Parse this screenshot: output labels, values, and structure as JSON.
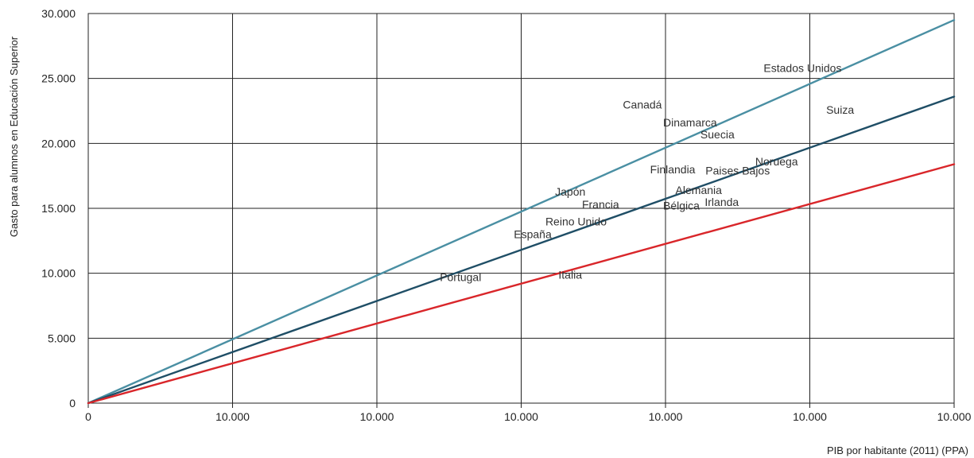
{
  "chart_data": {
    "type": "line",
    "title": "",
    "xlabel": "PIB por habitante (2011) (PPA)",
    "ylabel": "Gasto para alumnos en Educación Superior",
    "x_tick_labels": [
      "0",
      "10.000",
      "10.000",
      "10.000",
      "10.000",
      "10.000",
      "10.000"
    ],
    "xlim": [
      0,
      60000
    ],
    "ylim": [
      0,
      30000
    ],
    "y_ticks": [
      0,
      5000,
      10000,
      15000,
      20000,
      25000,
      30000
    ],
    "y_tick_labels": [
      "0",
      "5.000",
      "10.000",
      "15.000",
      "20.000",
      "25.000",
      "30.000"
    ],
    "grid": true,
    "series": [
      {
        "color": "#4a8fa3",
        "x": [
          0,
          60000
        ],
        "values": [
          0,
          29500
        ]
      },
      {
        "color": "#1f4e66",
        "x": [
          0,
          60000
        ],
        "values": [
          0,
          23600
        ]
      },
      {
        "color": "#d9262a",
        "x": [
          0,
          60000
        ],
        "values": [
          0,
          18400
        ]
      }
    ],
    "annotations": [
      {
        "text": "Estados Unidos",
        "x": 49500,
        "y": 25800
      },
      {
        "text": "Suiza",
        "x": 52100,
        "y": 22600
      },
      {
        "text": "Canadá",
        "x": 38400,
        "y": 23000
      },
      {
        "text": "Dinamarca",
        "x": 41700,
        "y": 21600
      },
      {
        "text": "Suecia",
        "x": 43600,
        "y": 20700
      },
      {
        "text": "Noruega",
        "x": 47700,
        "y": 18600
      },
      {
        "text": "Finlandia",
        "x": 40500,
        "y": 18000
      },
      {
        "text": "Paises Bajos",
        "x": 45000,
        "y": 17900
      },
      {
        "text": "Japón",
        "x": 33400,
        "y": 16300
      },
      {
        "text": "Alemania",
        "x": 42300,
        "y": 16400
      },
      {
        "text": "Francia",
        "x": 35500,
        "y": 15300
      },
      {
        "text": "Bélgica",
        "x": 41100,
        "y": 15200
      },
      {
        "text": "Irlanda",
        "x": 43900,
        "y": 15500
      },
      {
        "text": "Reino Unido",
        "x": 33800,
        "y": 14000
      },
      {
        "text": "España",
        "x": 30800,
        "y": 13000
      },
      {
        "text": "Portugal",
        "x": 25800,
        "y": 9700
      },
      {
        "text": "Italia",
        "x": 33400,
        "y": 9900
      }
    ]
  }
}
